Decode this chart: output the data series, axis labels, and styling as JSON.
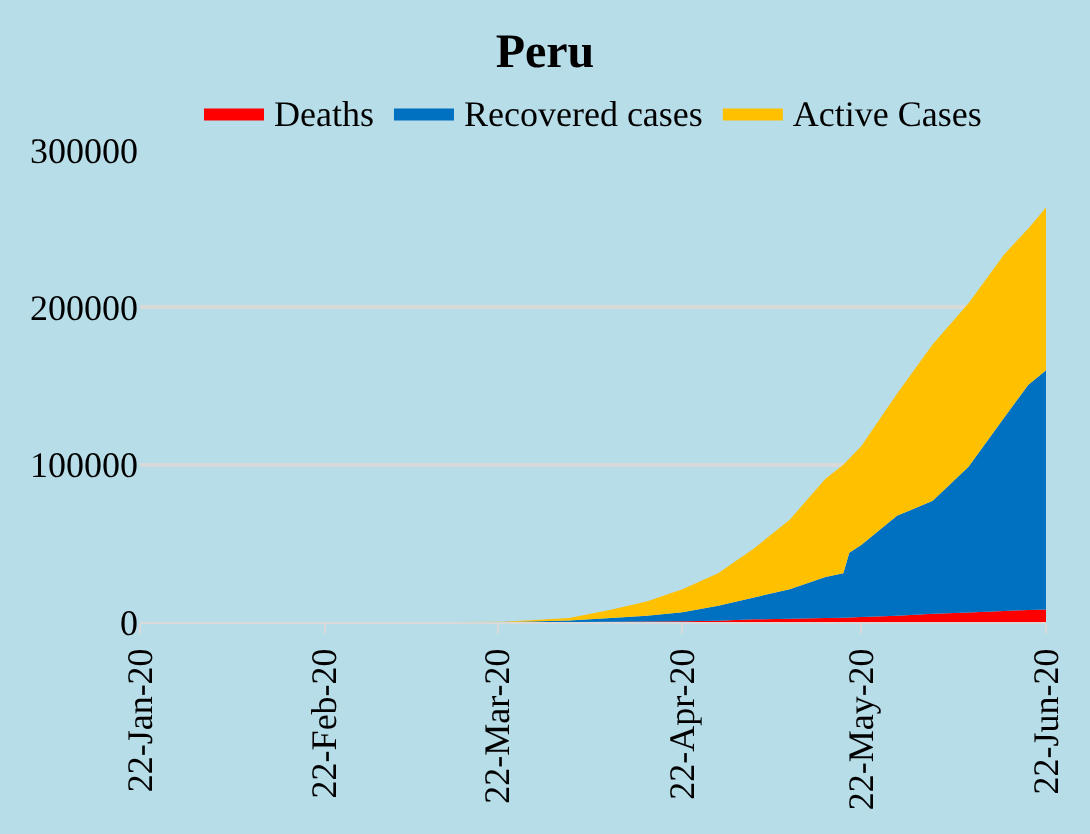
{
  "chart_data": {
    "type": "area",
    "title": "Peru",
    "stacked": true,
    "x": [
      "2020-01-22",
      "2020-03-15",
      "2020-03-23",
      "2020-04-03",
      "2020-04-10",
      "2020-04-16",
      "2020-04-22",
      "2020-04-28",
      "2020-05-04",
      "2020-05-10",
      "2020-05-16",
      "2020-05-19",
      "2020-05-20",
      "2020-05-22",
      "2020-05-28",
      "2020-06-03",
      "2020-06-09",
      "2020-06-15",
      "2020-06-19",
      "2020-06-22"
    ],
    "series": [
      {
        "name": "Deaths",
        "color": "#ff0000",
        "values": [
          0,
          0,
          0,
          60,
          200,
          350,
          530,
          850,
          1700,
          2000,
          2500,
          2700,
          2800,
          3200,
          4000,
          5200,
          6100,
          7000,
          7700,
          8000
        ]
      },
      {
        "name": "Recovered cases",
        "color": "#0070c0",
        "values": [
          0,
          0,
          0,
          940,
          2300,
          3650,
          5670,
          9550,
          13900,
          18800,
          26100,
          28300,
          41200,
          45800,
          63500,
          71800,
          92600,
          123000,
          142900,
          152000
        ]
      },
      {
        "name": "Active Cases",
        "color": "#ffc000",
        "values": [
          0,
          0,
          200,
          1600,
          5300,
          9000,
          14600,
          20600,
          31100,
          44200,
          62400,
          69000,
          60000,
          62700,
          77500,
          99600,
          103900,
          103800,
          99400,
          103400
        ]
      }
    ],
    "xlim": [
      "2020-01-22",
      "2020-06-22"
    ],
    "xticks": [
      {
        "value": "2020-01-22",
        "label": "22-Jan-20"
      },
      {
        "value": "2020-02-22",
        "label": "22-Feb-20"
      },
      {
        "value": "2020-03-22",
        "label": "22-Mar-20"
      },
      {
        "value": "2020-04-22",
        "label": "22-Apr-20"
      },
      {
        "value": "2020-05-22",
        "label": "22-May-20"
      },
      {
        "value": "2020-06-22",
        "label": "22-Jun-20"
      }
    ],
    "ylim": [
      0,
      300000
    ],
    "yticks": [
      0,
      100000,
      200000,
      300000
    ],
    "grid": "y",
    "legend": "top"
  }
}
